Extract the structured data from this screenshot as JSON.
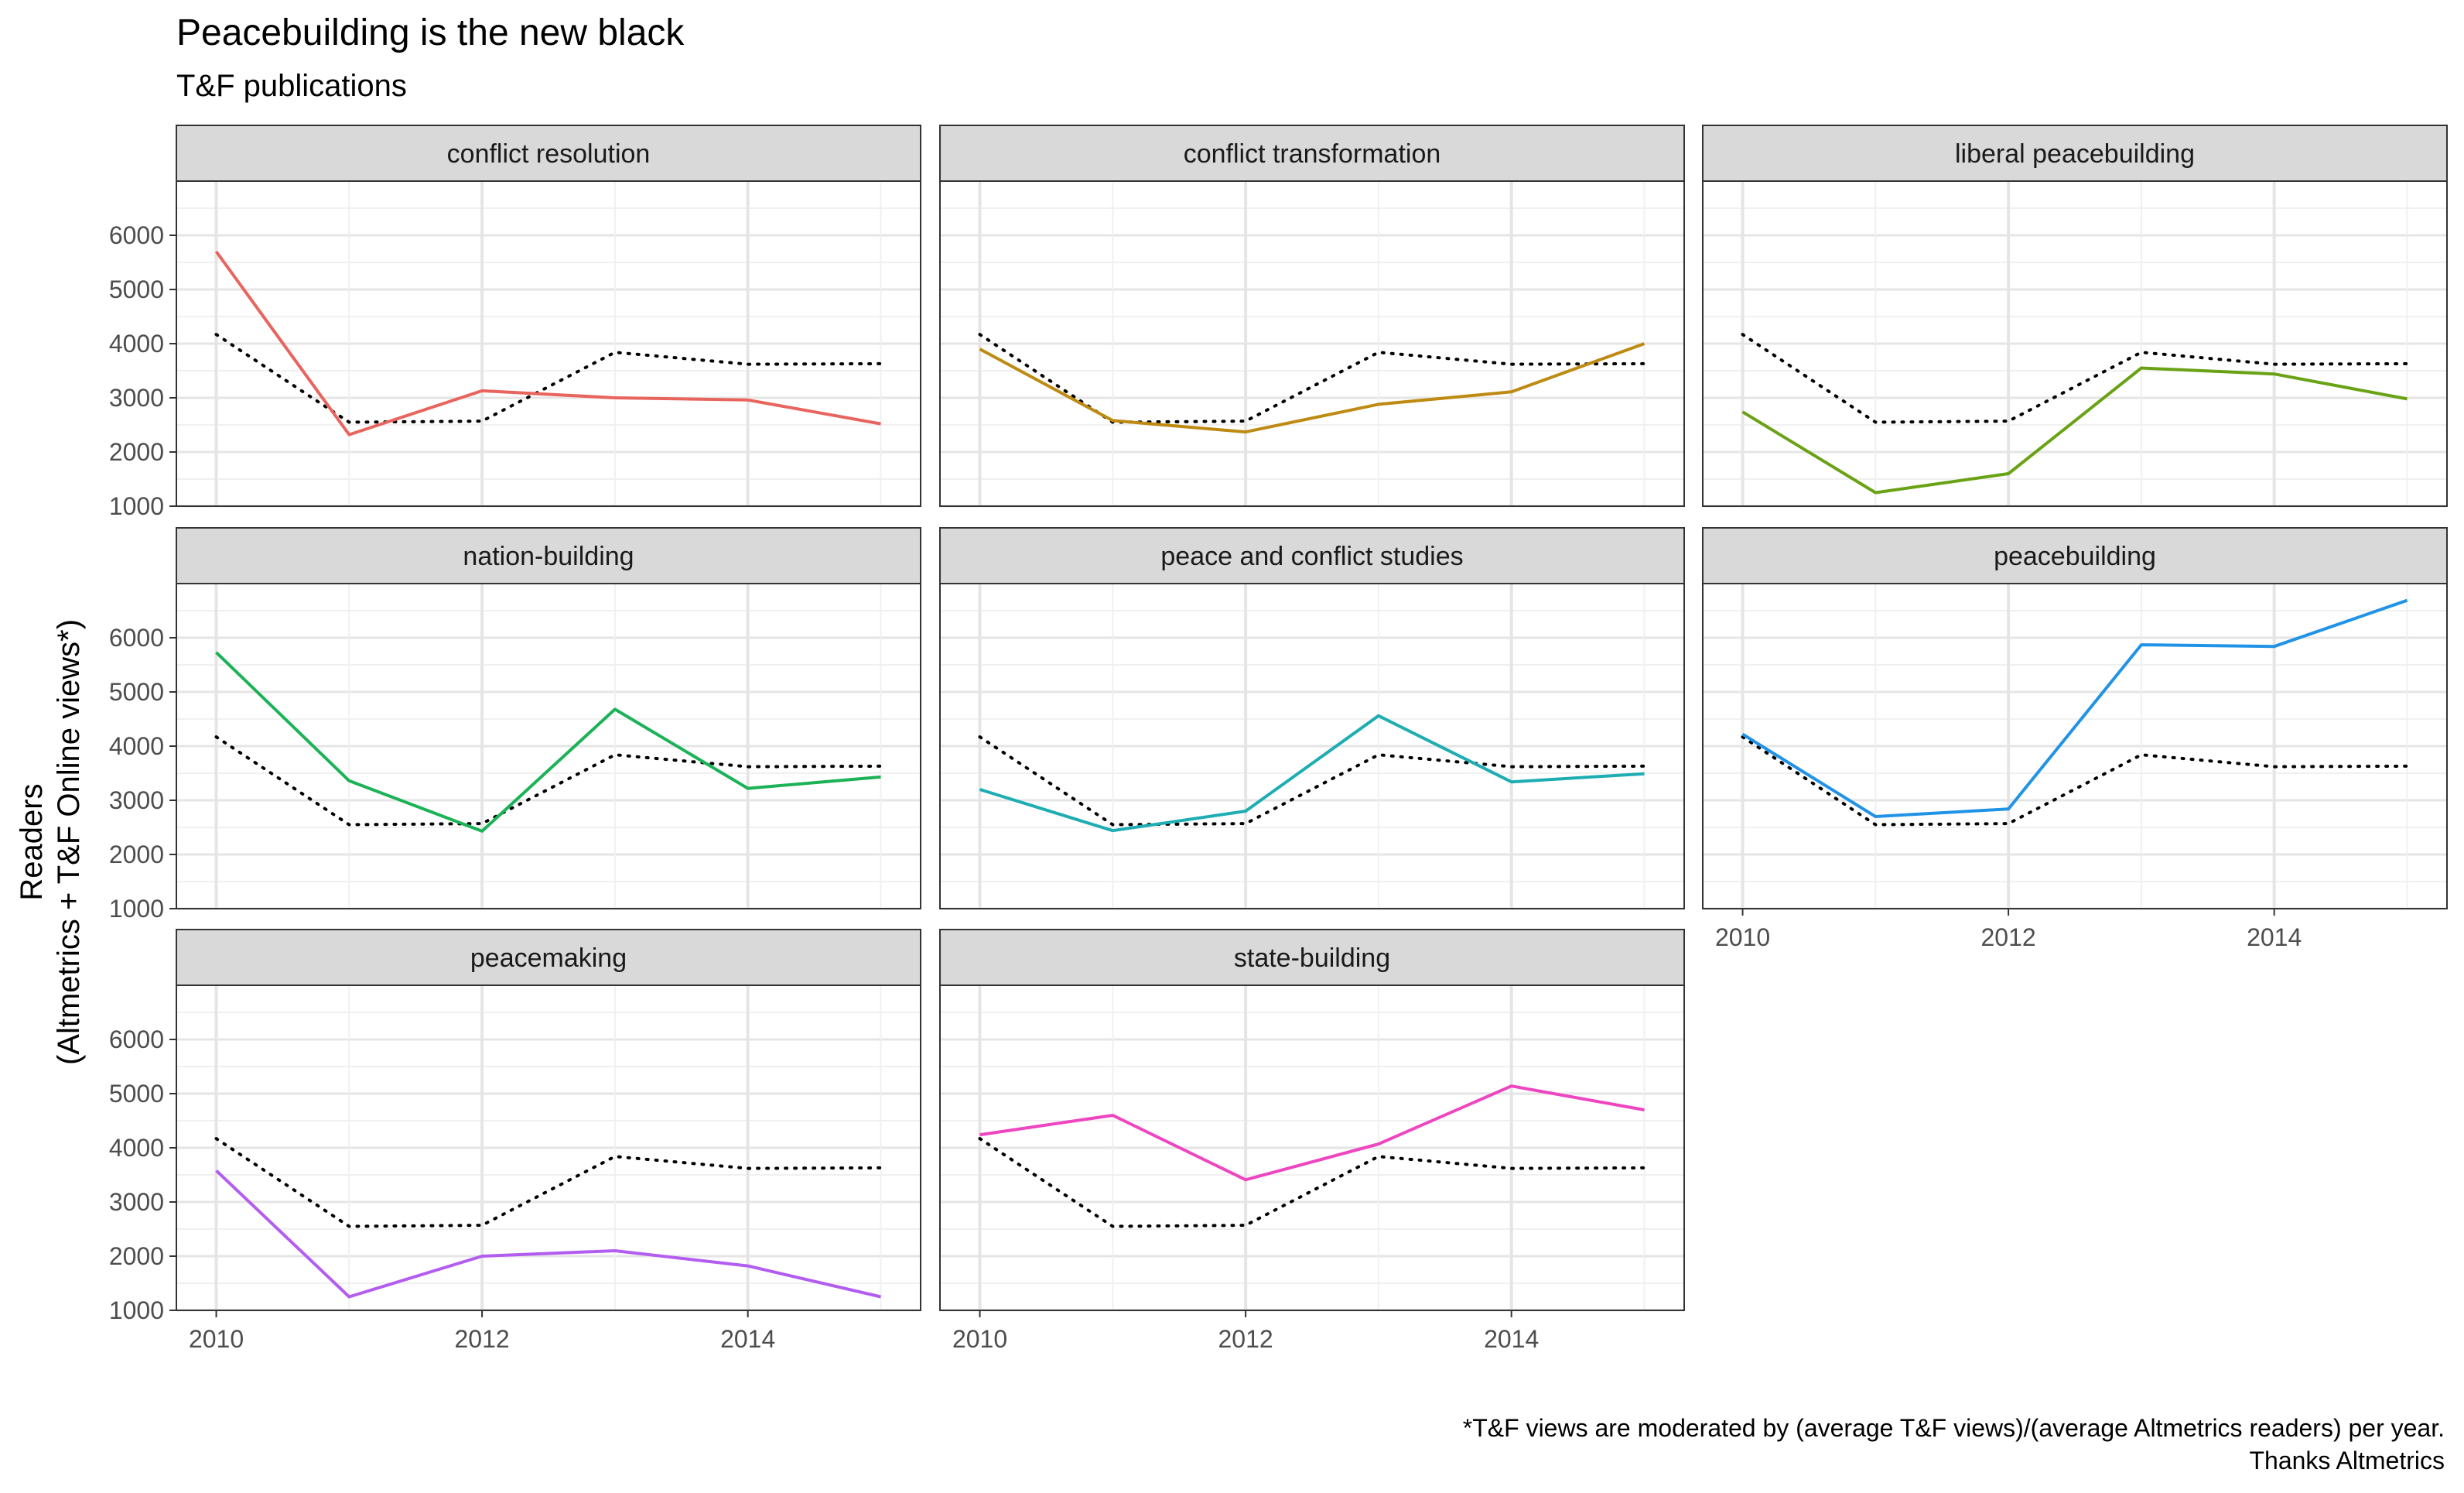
{
  "title": "Peacebuilding is the new black",
  "subtitle": "T&F publications",
  "caption_line1": "*T&F views are moderated by (average T&F views)/(average Altmetrics readers) per year.",
  "caption_line2": "Thanks Altmetrics",
  "chart_data": {
    "type": "line",
    "layout": "faceted small multiples, 3 columns",
    "ylabel_line1": "Readers",
    "ylabel_line2": "(Altmetrics + T&F Online views*)",
    "xlabel": "",
    "x": [
      2010,
      2011,
      2012,
      2013,
      2014,
      2015
    ],
    "x_ticks": [
      "2010",
      "2012",
      "2014"
    ],
    "xlim": [
      2009.7,
      2015.3
    ],
    "y_ticks": [
      "1000",
      "2000",
      "3000",
      "4000",
      "5000",
      "6000"
    ],
    "ylim": [
      1000,
      7000
    ],
    "grid": true,
    "legend": "none",
    "reference_series": {
      "style": "dotted",
      "color": "#000000",
      "values": [
        4170,
        2550,
        2570,
        3840,
        3620,
        3630
      ]
    },
    "facets": [
      {
        "name": "conflict resolution",
        "color": "#E8655E",
        "values": [
          5700,
          2320,
          3130,
          3000,
          2960,
          2520
        ]
      },
      {
        "name": "conflict transformation",
        "color": "#BE8A12",
        "values": [
          3900,
          2580,
          2370,
          2880,
          3110,
          4000
        ]
      },
      {
        "name": "liberal peacebuilding",
        "color": "#6AA215",
        "values": [
          2740,
          1250,
          1600,
          3550,
          3440,
          2980
        ]
      },
      {
        "name": "nation-building",
        "color": "#1CB257",
        "values": [
          5730,
          3360,
          2430,
          4680,
          3220,
          3430
        ]
      },
      {
        "name": "peace and conflict studies",
        "color": "#1DADB3",
        "values": [
          3200,
          2440,
          2800,
          4560,
          3340,
          3490
        ]
      },
      {
        "name": "peacebuilding",
        "color": "#2193E6",
        "values": [
          4220,
          2700,
          2840,
          5870,
          5840,
          6690
        ]
      },
      {
        "name": "peacemaking",
        "color": "#B35DF0",
        "values": [
          3580,
          1250,
          2000,
          2100,
          1820,
          1250
        ]
      },
      {
        "name": "state-building",
        "color": "#EE45C0",
        "values": [
          4240,
          4600,
          3410,
          4070,
          5140,
          4700
        ]
      }
    ]
  }
}
